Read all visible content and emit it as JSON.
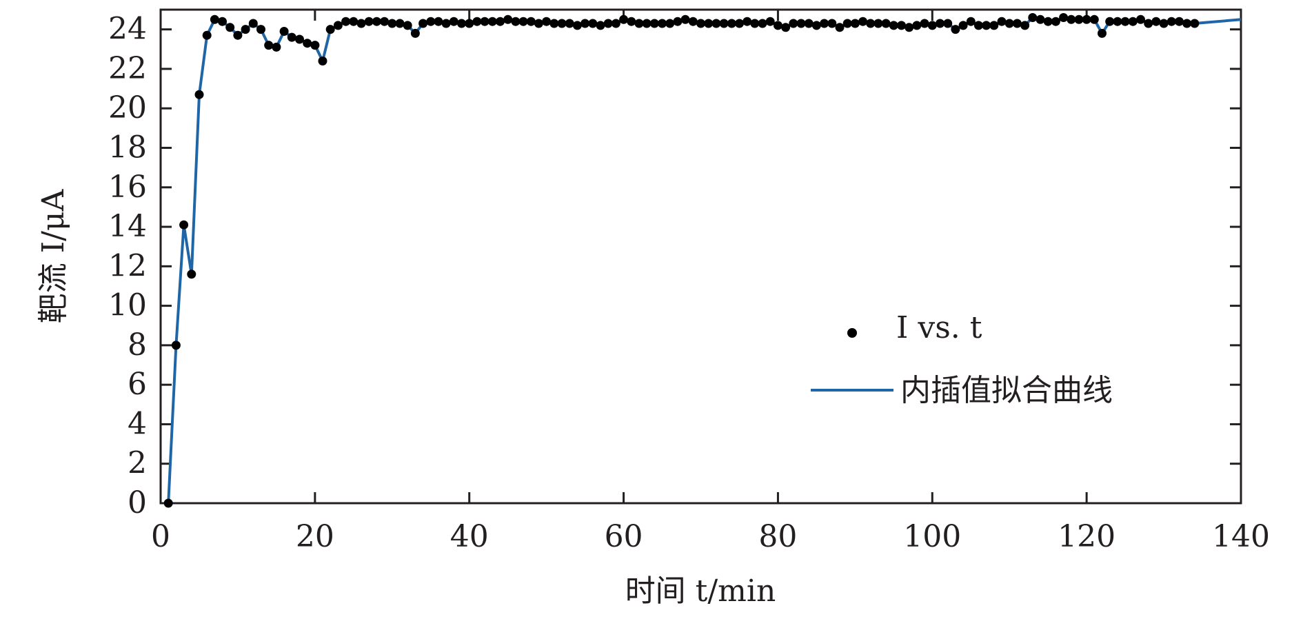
{
  "chart_data": {
    "type": "line",
    "xlabel": "时间 t/min",
    "ylabel": "靶流 I/μA",
    "xlim": [
      0,
      140
    ],
    "ylim": [
      0,
      25
    ],
    "xticks": [
      0,
      20,
      40,
      60,
      80,
      100,
      120,
      140
    ],
    "yticks": [
      0,
      2,
      4,
      6,
      8,
      10,
      12,
      14,
      16,
      18,
      20,
      22,
      24
    ],
    "grid": false,
    "legend_position": "center-right",
    "series": [
      {
        "name": "I vs. t",
        "style": "markers",
        "color": "#000000",
        "x": [
          1,
          2,
          3,
          4,
          5,
          6,
          7,
          8,
          9,
          10,
          11,
          12,
          13,
          14,
          15,
          16,
          17,
          18,
          19,
          20,
          21,
          22,
          23,
          24,
          25,
          26,
          27,
          28,
          29,
          30,
          31,
          32,
          33,
          34,
          35,
          36,
          37,
          38,
          39,
          40,
          41,
          42,
          43,
          44,
          45,
          46,
          47,
          48,
          49,
          50,
          51,
          52,
          53,
          54,
          55,
          56,
          57,
          58,
          59,
          60,
          61,
          62,
          63,
          64,
          65,
          66,
          67,
          68,
          69,
          70,
          71,
          72,
          73,
          74,
          75,
          76,
          77,
          78,
          79,
          80,
          81,
          82,
          83,
          84,
          85,
          86,
          87,
          88,
          89,
          90,
          91,
          92,
          93,
          94,
          95,
          96,
          97,
          98,
          99,
          100,
          101,
          102,
          103,
          104,
          105,
          106,
          107,
          108,
          109,
          110,
          111,
          112,
          113,
          114,
          115,
          116,
          117,
          118,
          119,
          120,
          121,
          122,
          123,
          124,
          125,
          126,
          127,
          128,
          129,
          130,
          131,
          132,
          133,
          134
        ],
        "y": [
          0,
          8,
          14.1,
          11.6,
          20.7,
          23.7,
          24.5,
          24.4,
          24.1,
          23.7,
          24.0,
          24.3,
          24.0,
          23.2,
          23.1,
          23.9,
          23.6,
          23.5,
          23.3,
          23.2,
          22.4,
          24.0,
          24.2,
          24.4,
          24.4,
          24.3,
          24.4,
          24.4,
          24.4,
          24.3,
          24.3,
          24.2,
          23.8,
          24.3,
          24.4,
          24.4,
          24.3,
          24.4,
          24.3,
          24.3,
          24.4,
          24.4,
          24.4,
          24.4,
          24.5,
          24.4,
          24.4,
          24.4,
          24.3,
          24.4,
          24.3,
          24.3,
          24.3,
          24.2,
          24.3,
          24.3,
          24.2,
          24.3,
          24.3,
          24.5,
          24.4,
          24.3,
          24.3,
          24.3,
          24.3,
          24.3,
          24.4,
          24.5,
          24.4,
          24.3,
          24.3,
          24.3,
          24.3,
          24.3,
          24.3,
          24.4,
          24.3,
          24.3,
          24.4,
          24.2,
          24.1,
          24.3,
          24.3,
          24.3,
          24.2,
          24.3,
          24.3,
          24.1,
          24.3,
          24.3,
          24.4,
          24.3,
          24.3,
          24.3,
          24.2,
          24.2,
          24.1,
          24.2,
          24.3,
          24.2,
          24.3,
          24.3,
          24.0,
          24.2,
          24.4,
          24.2,
          24.2,
          24.2,
          24.4,
          24.3,
          24.3,
          24.2,
          24.6,
          24.5,
          24.4,
          24.4,
          24.6,
          24.5,
          24.5,
          24.5,
          24.5,
          23.8,
          24.4,
          24.4,
          24.4,
          24.4,
          24.5,
          24.3,
          24.4,
          24.3,
          24.4,
          24.4,
          24.3,
          24.3
        ]
      },
      {
        "name": "内插值拟合曲线",
        "style": "line",
        "color": "#1f66a8",
        "x": [
          1,
          2,
          3,
          4,
          5,
          6,
          7,
          8,
          9,
          10,
          11,
          12,
          13,
          14,
          15,
          16,
          17,
          18,
          19,
          20,
          21,
          22,
          23,
          24,
          25,
          26,
          27,
          28,
          29,
          30,
          31,
          32,
          33,
          34,
          35,
          36,
          37,
          38,
          39,
          40,
          41,
          42,
          43,
          44,
          45,
          46,
          47,
          48,
          49,
          50,
          51,
          52,
          53,
          54,
          55,
          56,
          57,
          58,
          59,
          60,
          61,
          62,
          63,
          64,
          65,
          66,
          67,
          68,
          69,
          70,
          71,
          72,
          73,
          74,
          75,
          76,
          77,
          78,
          79,
          80,
          81,
          82,
          83,
          84,
          85,
          86,
          87,
          88,
          89,
          90,
          91,
          92,
          93,
          94,
          95,
          96,
          97,
          98,
          99,
          100,
          101,
          102,
          103,
          104,
          105,
          106,
          107,
          108,
          109,
          110,
          111,
          112,
          113,
          114,
          115,
          116,
          117,
          118,
          119,
          120,
          121,
          122,
          123,
          124,
          125,
          126,
          127,
          128,
          129,
          130,
          131,
          132,
          133,
          134,
          140
        ],
        "y": [
          0,
          8,
          14.1,
          11.6,
          20.7,
          23.7,
          24.5,
          24.4,
          24.1,
          23.7,
          24.0,
          24.3,
          24.0,
          23.2,
          23.1,
          23.9,
          23.6,
          23.5,
          23.3,
          23.2,
          22.4,
          24.0,
          24.2,
          24.4,
          24.4,
          24.3,
          24.4,
          24.4,
          24.4,
          24.3,
          24.3,
          24.2,
          23.8,
          24.3,
          24.4,
          24.4,
          24.3,
          24.4,
          24.3,
          24.3,
          24.4,
          24.4,
          24.4,
          24.4,
          24.5,
          24.4,
          24.4,
          24.4,
          24.3,
          24.4,
          24.3,
          24.3,
          24.3,
          24.2,
          24.3,
          24.3,
          24.2,
          24.3,
          24.3,
          24.5,
          24.4,
          24.3,
          24.3,
          24.3,
          24.3,
          24.3,
          24.4,
          24.5,
          24.4,
          24.3,
          24.3,
          24.3,
          24.3,
          24.3,
          24.3,
          24.4,
          24.3,
          24.3,
          24.4,
          24.2,
          24.1,
          24.3,
          24.3,
          24.3,
          24.2,
          24.3,
          24.3,
          24.1,
          24.3,
          24.3,
          24.4,
          24.3,
          24.3,
          24.3,
          24.2,
          24.2,
          24.1,
          24.2,
          24.3,
          24.2,
          24.3,
          24.3,
          24.0,
          24.2,
          24.4,
          24.2,
          24.2,
          24.2,
          24.4,
          24.3,
          24.3,
          24.2,
          24.6,
          24.5,
          24.4,
          24.4,
          24.6,
          24.5,
          24.5,
          24.5,
          24.5,
          23.8,
          24.4,
          24.4,
          24.4,
          24.4,
          24.5,
          24.3,
          24.4,
          24.3,
          24.4,
          24.4,
          24.3,
          24.3,
          24.5
        ]
      }
    ]
  }
}
